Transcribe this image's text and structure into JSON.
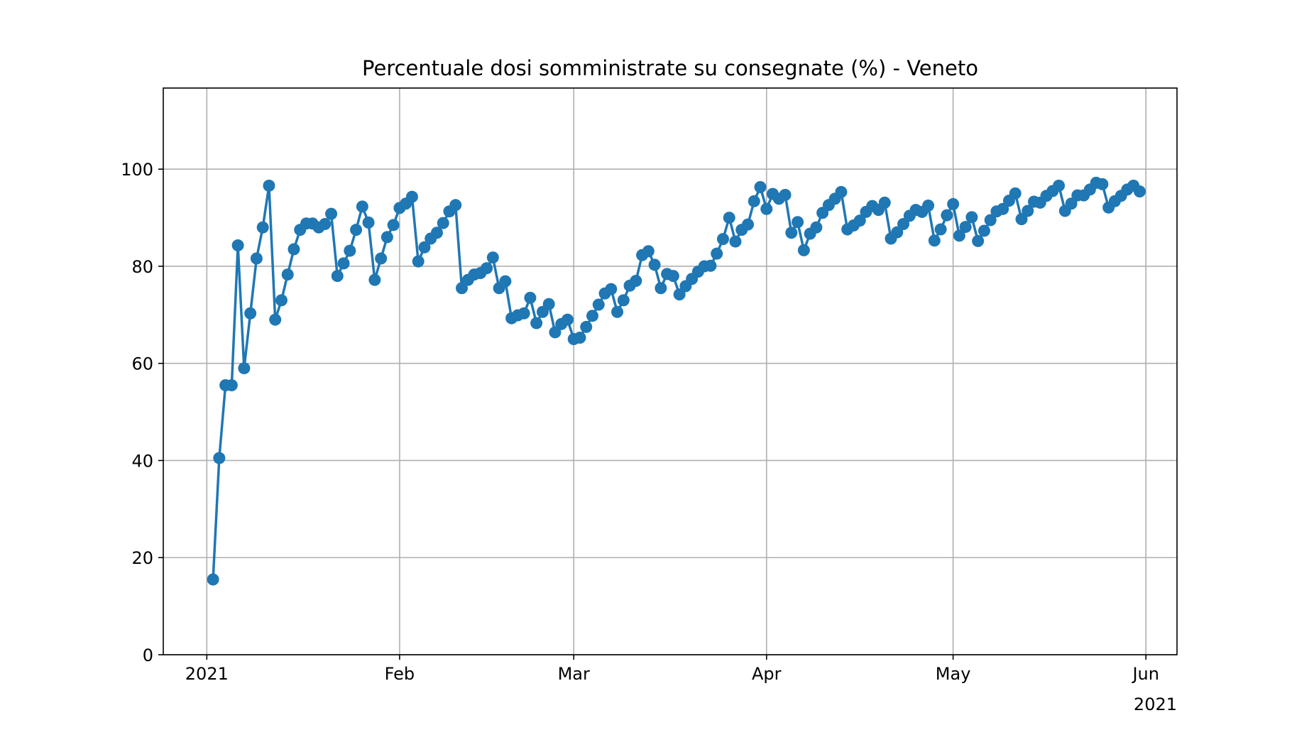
{
  "chart_data": {
    "type": "line",
    "title": "Percentuale dosi somministrate su consegnate (%) - Veneto",
    "xlabel": "",
    "ylabel": "",
    "ylim": [
      0,
      116.7
    ],
    "xlim": [
      "2020-12-25",
      "2021-06-06"
    ],
    "grid": true,
    "legend": "none",
    "x_tick_labels": [
      {
        "date": "2021-01-01",
        "label": "2021"
      },
      {
        "date": "2021-02-01",
        "label": "Feb"
      },
      {
        "date": "2021-03-01",
        "label": "Mar"
      },
      {
        "date": "2021-04-01",
        "label": "Apr"
      },
      {
        "date": "2021-05-01",
        "label": "May"
      },
      {
        "date": "2021-06-01",
        "label": "Jun"
      }
    ],
    "x_offset_label": "2021",
    "y_ticks": [
      0,
      20,
      40,
      60,
      80,
      100
    ],
    "series": [
      {
        "color": "#1f77b4",
        "marker": "circle",
        "start_date": "2021-01-02",
        "values": [
          15.5,
          40.5,
          55.5,
          55.5,
          84.3,
          59,
          70.3,
          81.6,
          88,
          96.6,
          69,
          73,
          78.3,
          83.5,
          87.5,
          88.8,
          88.8,
          88,
          88.7,
          90.8,
          78,
          80.6,
          83.2,
          87.5,
          92.3,
          89,
          77.2,
          81.6,
          86,
          88.5,
          92,
          92.9,
          94.3,
          81,
          83.9,
          85.7,
          86.9,
          88.9,
          91.3,
          92.6,
          75.5,
          77.2,
          78.3,
          78.6,
          79.6,
          81.8,
          75.5,
          76.9,
          69.3,
          69.9,
          70.3,
          73.5,
          68.3,
          70.6,
          72.2,
          66.4,
          68.1,
          69,
          65,
          65.3,
          67.5,
          69.8,
          72.1,
          74.4,
          75.3,
          70.6,
          73,
          76,
          77,
          82.3,
          83.1,
          80.3,
          75.5,
          78.4,
          78,
          74.2,
          75.9,
          77.4,
          78.9,
          80,
          80.1,
          82.6,
          85.6,
          90,
          85.1,
          87.5,
          88.6,
          93.4,
          96.3,
          91.8,
          94.9,
          93.9,
          94.7,
          86.9,
          89.1,
          83.3,
          86.7,
          88,
          91,
          92.6,
          93.9,
          95.3,
          87.6,
          88.4,
          89.4,
          91.2,
          92.4,
          91.6,
          93.1,
          85.7,
          87,
          88.7,
          90.4,
          91.6,
          91.2,
          92.5,
          85.3,
          87.6,
          90.5,
          92.8,
          86.3,
          88.1,
          90.1,
          85.2,
          87.3,
          89.5,
          91.3,
          91.8,
          93.5,
          95,
          89.7,
          91.4,
          93.3,
          93.1,
          94.5,
          95.5,
          96.6,
          91.4,
          92.9,
          94.6,
          94.6,
          95.8,
          97.2,
          96.9,
          92.1,
          93.4,
          94.5,
          95.8,
          96.6,
          95.4
        ]
      }
    ]
  }
}
